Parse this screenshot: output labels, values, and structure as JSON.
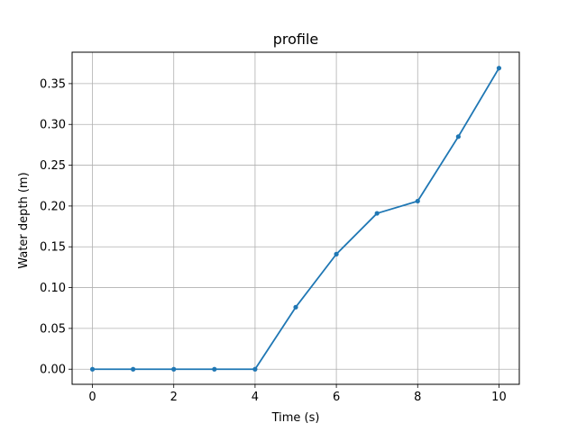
{
  "chart_data": {
    "type": "line",
    "title": "profile",
    "xlabel": "Time (s)",
    "ylabel": "Water depth (m)",
    "xlim": [
      -0.5,
      10.5
    ],
    "ylim": [
      -0.0185,
      0.3885
    ],
    "xticks": [
      0,
      2,
      4,
      6,
      8,
      10
    ],
    "xtick_labels": [
      "0",
      "2",
      "4",
      "6",
      "8",
      "10"
    ],
    "yticks": [
      0.0,
      0.05,
      0.1,
      0.15,
      0.2,
      0.25,
      0.3,
      0.35
    ],
    "ytick_labels": [
      "0.00",
      "0.05",
      "0.10",
      "0.15",
      "0.20",
      "0.25",
      "0.30",
      "0.35"
    ],
    "grid": true,
    "series": [
      {
        "color": "#1f77b4",
        "marker": "circle",
        "x": [
          0,
          1,
          2,
          3,
          4,
          5,
          6,
          7,
          8,
          9,
          10
        ],
        "y": [
          0.0,
          0.0,
          0.0,
          0.0,
          0.0,
          0.076,
          0.141,
          0.191,
          0.206,
          0.285,
          0.369
        ]
      }
    ]
  }
}
